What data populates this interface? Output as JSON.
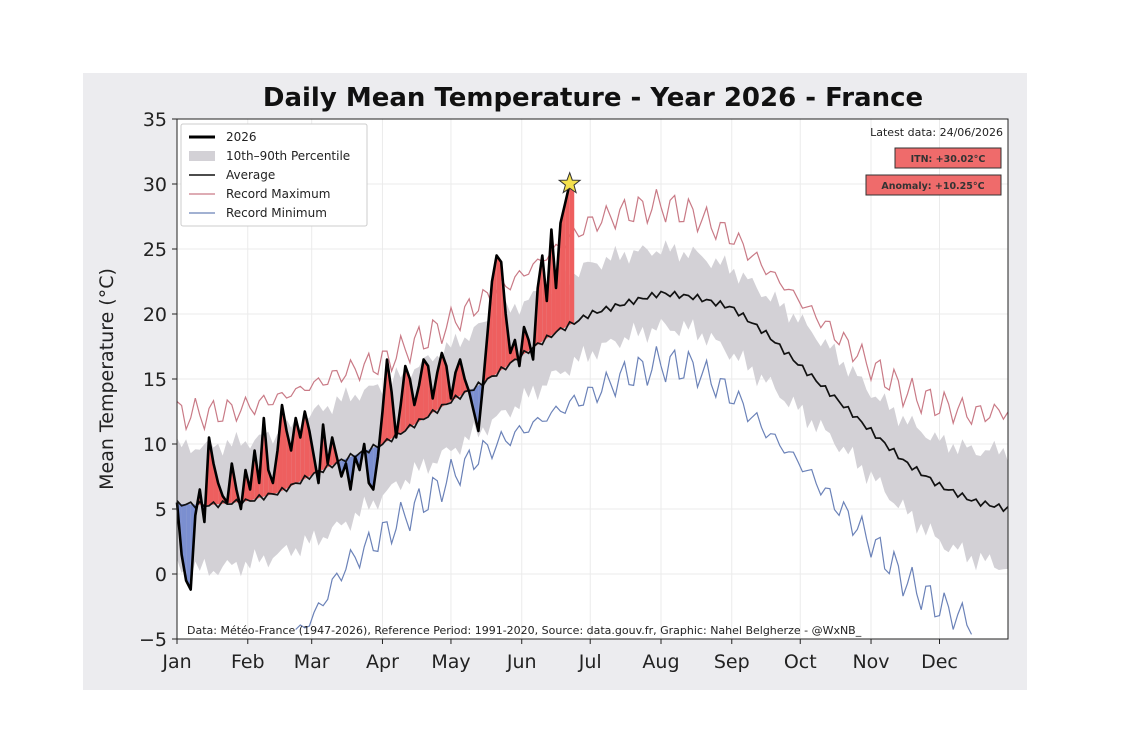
{
  "chart_data": {
    "type": "line",
    "title": "Daily Mean Temperature - Year 2026 - France",
    "xlabel": "",
    "ylabel": "Mean Temperature (°C)",
    "ylim": [
      -5,
      35
    ],
    "xlim_day": [
      1,
      365
    ],
    "grid": true,
    "legend_position": "top-left",
    "y_ticks": [
      -5,
      0,
      5,
      10,
      15,
      20,
      25,
      30,
      35
    ],
    "x_ticks": [
      {
        "label": "Jan",
        "day": 1
      },
      {
        "label": "Feb",
        "day": 32
      },
      {
        "label": "Mar",
        "day": 60
      },
      {
        "label": "Apr",
        "day": 91
      },
      {
        "label": "May",
        "day": 121
      },
      {
        "label": "Jun",
        "day": 152
      },
      {
        "label": "Jul",
        "day": 182
      },
      {
        "label": "Aug",
        "day": 213
      },
      {
        "label": "Sep",
        "day": 244
      },
      {
        "label": "Oct",
        "day": 274
      },
      {
        "label": "Nov",
        "day": 305
      },
      {
        "label": "Dec",
        "day": 335
      }
    ],
    "legend": [
      {
        "label": "2026",
        "key": "current"
      },
      {
        "label": "10th–90th Percentile",
        "key": "band"
      },
      {
        "label": "Average",
        "key": "average"
      },
      {
        "label": "Record Maximum",
        "key": "record_max"
      },
      {
        "label": "Record Minimum",
        "key": "record_min"
      }
    ],
    "colors": {
      "current": "#000000",
      "average": "#111111",
      "band": "#d3d1d6",
      "record_max": "#c97a86",
      "record_min": "#6b82b8",
      "above_fill": "#ee5f5f",
      "below_fill": "#7b8fd0",
      "badge_fill": "#ef6b6b",
      "star": "#f4e04d"
    },
    "series": [
      {
        "name": "2026",
        "x": [
          1,
          3,
          5,
          7,
          9,
          11,
          13,
          15,
          17,
          19,
          21,
          23,
          25,
          27,
          29,
          31,
          33,
          35,
          37,
          39,
          41,
          43,
          45,
          47,
          49,
          51,
          53,
          55,
          57,
          59,
          61,
          63,
          65,
          67,
          69,
          71,
          73,
          75,
          77,
          79,
          81,
          83,
          85,
          87,
          89,
          91,
          93,
          95,
          97,
          99,
          101,
          103,
          105,
          107,
          109,
          111,
          113,
          115,
          117,
          119,
          121,
          123,
          125,
          127,
          129,
          131,
          133,
          135,
          137,
          139,
          141,
          143,
          145,
          147,
          149,
          151,
          153,
          155,
          157,
          159,
          161,
          163,
          165,
          167,
          169,
          171,
          173,
          175
        ],
        "y": [
          5.5,
          1.5,
          -0.5,
          -1.2,
          4.5,
          6.5,
          4.0,
          10.5,
          8.5,
          7.0,
          6.0,
          5.5,
          8.5,
          6.5,
          5.0,
          8.0,
          6.5,
          9.5,
          7.0,
          12.0,
          8.0,
          7.0,
          9.5,
          13.0,
          11.0,
          9.5,
          12.0,
          10.5,
          12.5,
          11.0,
          9.0,
          7.0,
          11.5,
          8.5,
          10.5,
          9.0,
          7.5,
          8.5,
          6.5,
          9.0,
          8.0,
          10.0,
          7.0,
          6.5,
          9.0,
          12.5,
          16.5,
          14.0,
          10.5,
          13.0,
          16.0,
          15.0,
          13.0,
          14.5,
          16.5,
          16.0,
          13.5,
          15.5,
          17.0,
          16.0,
          13.5,
          15.5,
          16.5,
          15.0,
          14.0,
          12.5,
          11.0,
          14.5,
          18.5,
          22.5,
          24.5,
          24.0,
          20.0,
          17.0,
          18.0,
          16.0,
          19.0,
          18.0,
          16.5,
          22.0,
          24.5,
          21.0,
          26.5,
          22.0,
          27.0,
          28.5,
          30.02,
          30.0
        ]
      },
      {
        "name": "Average",
        "x": [
          1,
          15,
          32,
          46,
          60,
          74,
          91,
          105,
          121,
          136,
          152,
          167,
          182,
          197,
          213,
          228,
          244,
          259,
          274,
          289,
          305,
          320,
          335,
          350,
          365
        ],
        "y": [
          5.4,
          5.3,
          5.6,
          6.3,
          7.6,
          8.8,
          10.0,
          11.5,
          13.3,
          14.8,
          16.8,
          18.6,
          20.0,
          20.8,
          21.6,
          21.3,
          20.5,
          18.5,
          16.0,
          13.6,
          11.0,
          8.6,
          6.8,
          5.6,
          5.0
        ]
      },
      {
        "name": "10th–90th Percentile",
        "x": [
          1,
          15,
          32,
          46,
          60,
          74,
          91,
          105,
          121,
          136,
          152,
          167,
          182,
          197,
          213,
          228,
          244,
          259,
          274,
          289,
          305,
          320,
          335,
          350,
          365
        ],
        "low": [
          0.5,
          0.3,
          0.8,
          1.5,
          2.5,
          3.8,
          6.0,
          7.8,
          9.5,
          11.3,
          13.3,
          15.3,
          17.0,
          18.2,
          19.0,
          18.8,
          17.0,
          14.8,
          12.5,
          10.3,
          7.5,
          4.8,
          2.5,
          1.2,
          0.5
        ],
        "high": [
          9.8,
          9.8,
          10.2,
          10.8,
          12.3,
          13.5,
          14.5,
          15.8,
          17.5,
          19.3,
          20.8,
          22.3,
          23.8,
          24.6,
          25.0,
          24.6,
          23.5,
          21.5,
          19.5,
          17.0,
          14.0,
          11.8,
          10.2,
          9.5,
          9.5
        ]
      },
      {
        "name": "Record Maximum",
        "x": [
          1,
          15,
          32,
          46,
          60,
          74,
          91,
          105,
          121,
          136,
          152,
          167,
          182,
          197,
          213,
          228,
          244,
          259,
          274,
          289,
          305,
          320,
          335,
          350,
          365
        ],
        "y": [
          12.3,
          12.3,
          12.8,
          13.6,
          14.5,
          15.5,
          16.3,
          17.7,
          19.3,
          21.2,
          23.0,
          25.0,
          27.0,
          27.8,
          28.4,
          27.6,
          26.0,
          23.5,
          21.0,
          18.5,
          16.0,
          14.0,
          13.0,
          12.3,
          12.5
        ]
      },
      {
        "name": "Record Minimum",
        "x": [
          1,
          15,
          32,
          46,
          60,
          74,
          91,
          105,
          121,
          136,
          152,
          167,
          182,
          197,
          213,
          228,
          244,
          259,
          274,
          289,
          305,
          320,
          335,
          350,
          365
        ],
        "y": [
          null,
          null,
          null,
          -5.5,
          -3.5,
          0.5,
          3.0,
          5.0,
          7.5,
          9.5,
          11.0,
          12.5,
          13.8,
          15.2,
          16.2,
          15.8,
          13.8,
          11.0,
          8.5,
          5.5,
          2.5,
          -0.5,
          -2.5,
          -3.8,
          null
        ]
      }
    ],
    "annotations": {
      "latest": "Latest data: 24/06/2026",
      "itn": "ITN: +30.02°C",
      "anomaly": "Anomaly: +10.25°C",
      "source": "Data: Météo-France (1947-2026), Reference Period: 1991-2020, Source: data.gouv.fr, Graphic: Nahel Belgherze - @WxNB_"
    }
  }
}
